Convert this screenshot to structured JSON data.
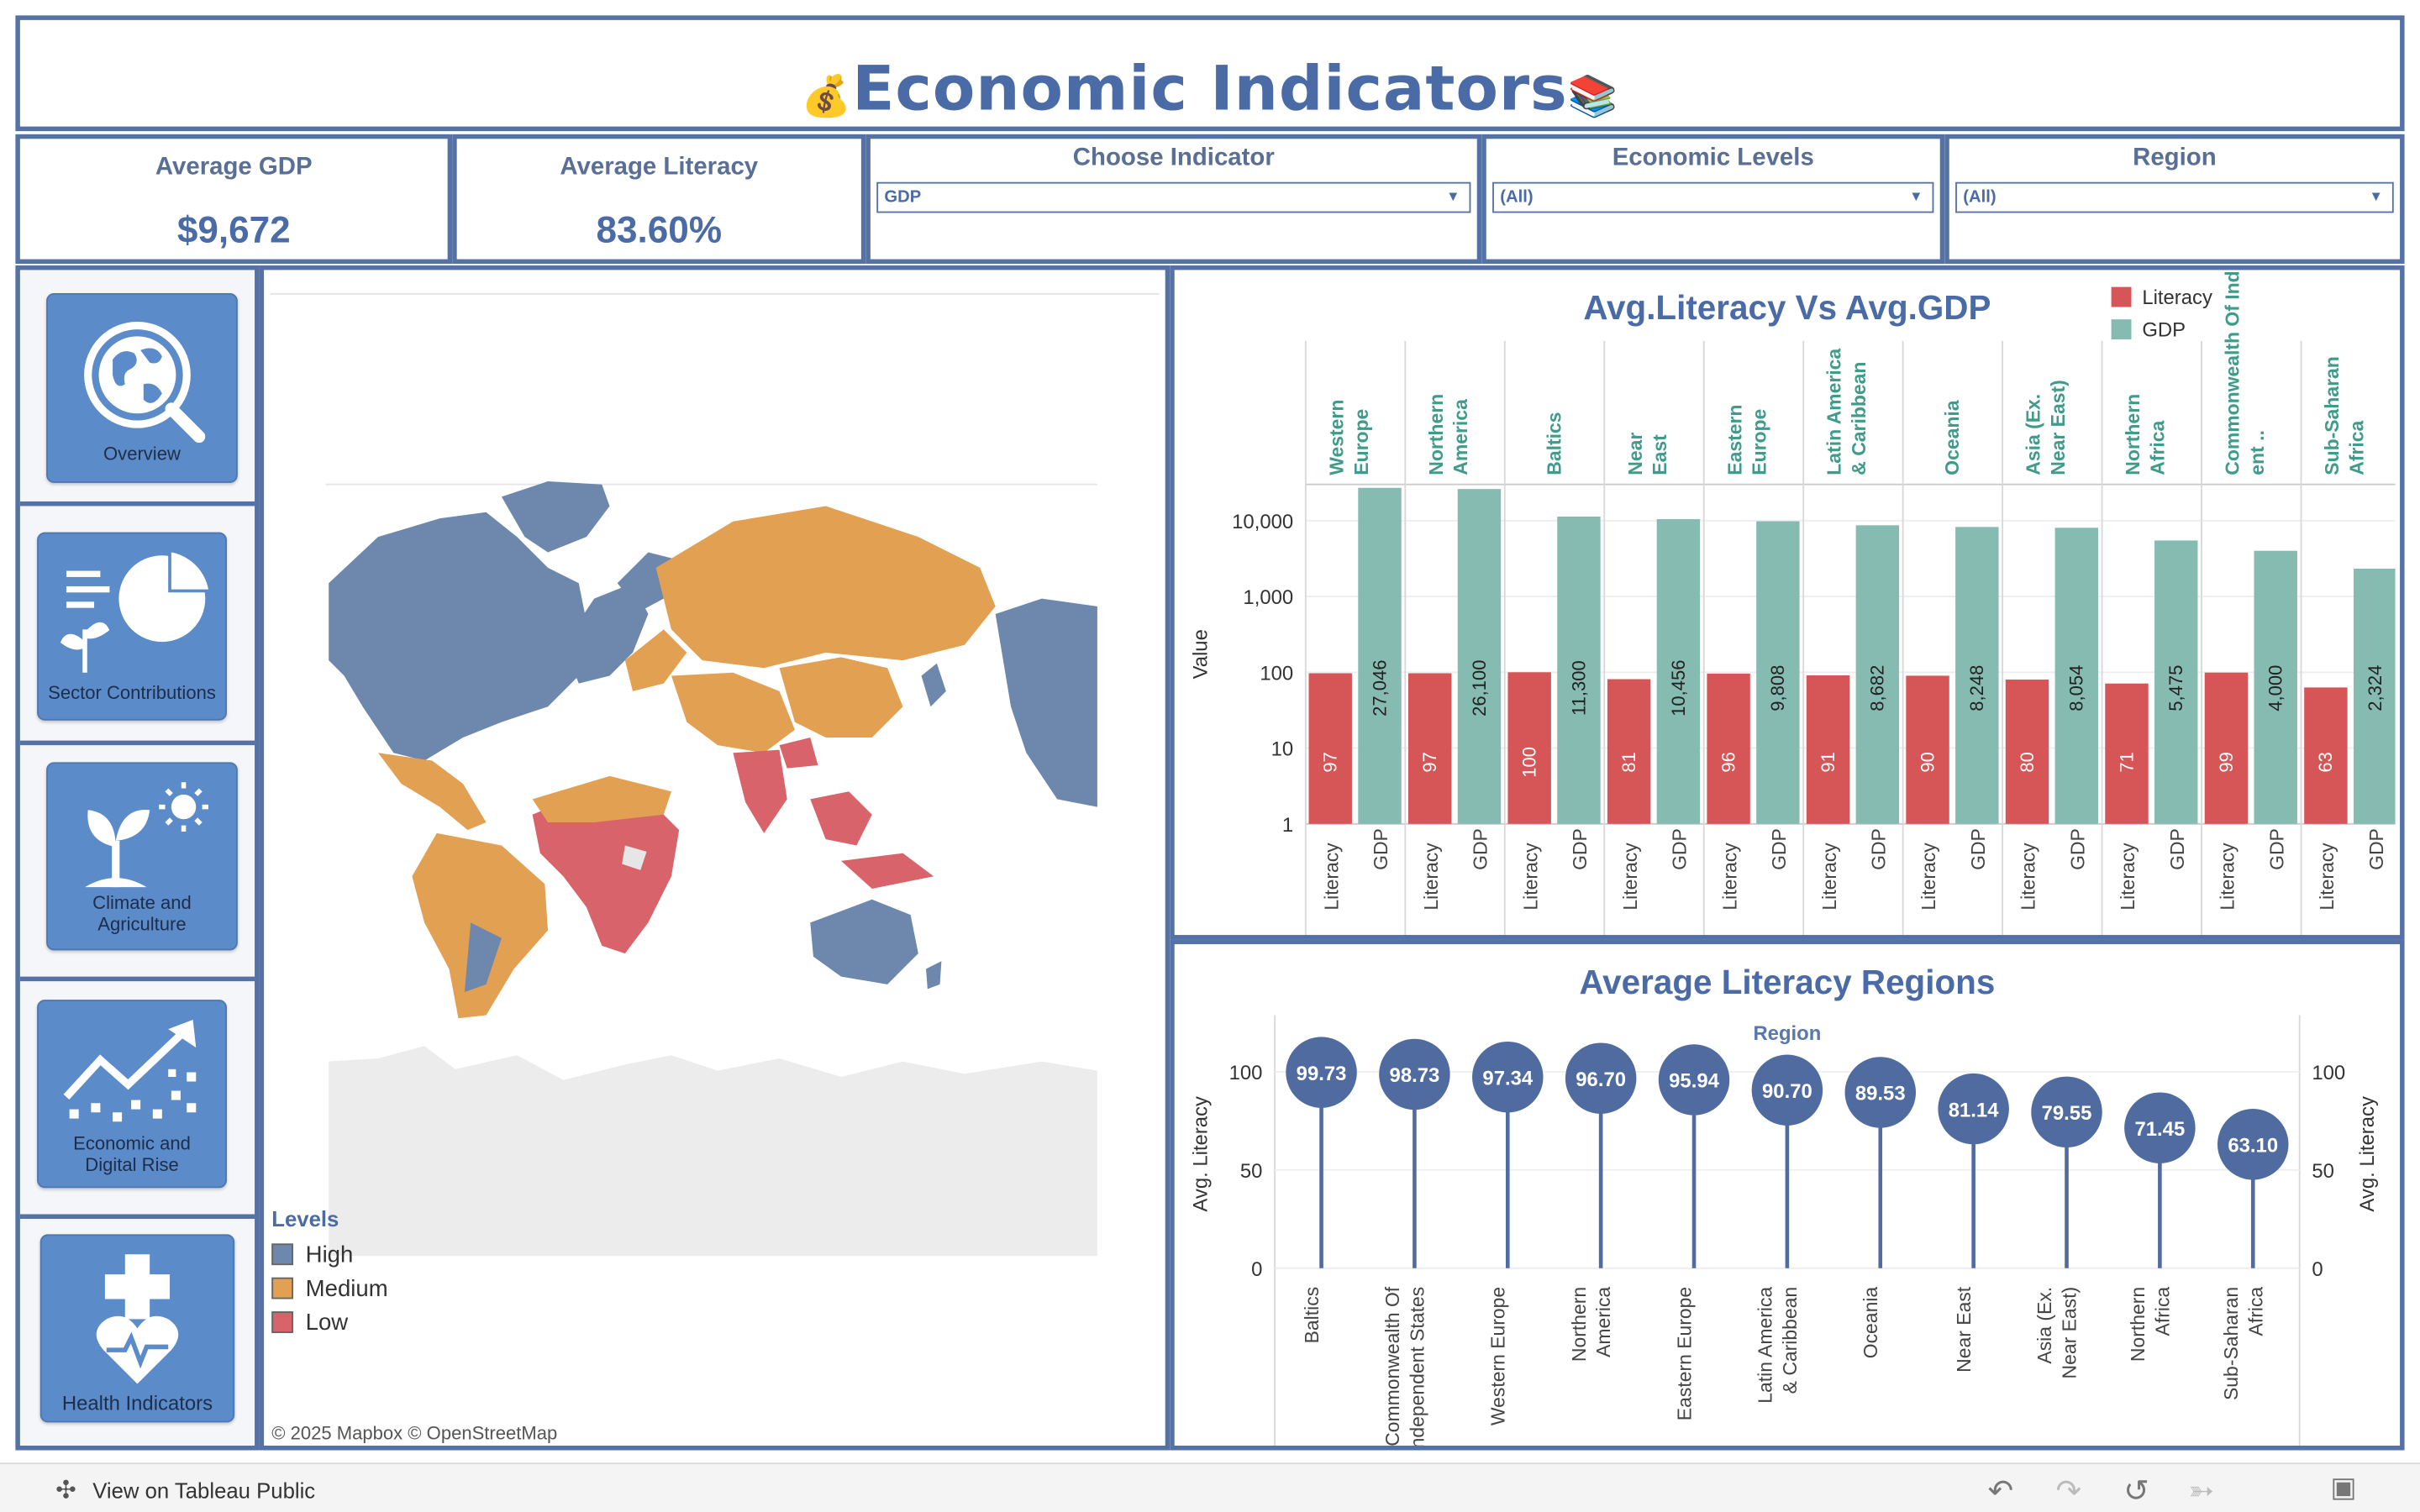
{
  "header": {
    "title": "Economic Indicators",
    "left_icon": "money-bag-icon",
    "right_icon": "books-icon"
  },
  "kpis": {
    "gdp_label": "Average GDP",
    "gdp_value": "$9,672",
    "literacy_label": "Average Literacy",
    "literacy_value": "83.60%"
  },
  "filters": {
    "indicator_label": "Choose Indicator",
    "indicator_value": "GDP",
    "levels_label": "Economic Levels",
    "levels_value": "(All)",
    "region_label": "Region",
    "region_value": "(All)"
  },
  "nav": {
    "overview": "Overview",
    "sector": "Sector Contributions",
    "climate_line1": "Climate and",
    "climate_line2": "Agriculture",
    "economic_line1": "Economic and",
    "economic_line2": "Digital Rise",
    "health": "Health Indicators"
  },
  "map": {
    "legend_title": "Levels",
    "legend": [
      {
        "label": "High",
        "color": "#6d87ad"
      },
      {
        "label": "Medium",
        "color": "#e2a052"
      },
      {
        "label": "Low",
        "color": "#d9636b"
      }
    ],
    "attribution": "© 2025 Mapbox  © OpenStreetMap"
  },
  "footer": {
    "link_text": "View on Tableau Public"
  },
  "colors": {
    "literacy": "#d65657",
    "gdp": "#86bbb1",
    "lollipop": "#4f6b9f",
    "frame": "#5572a6"
  },
  "chart_data": [
    {
      "type": "bar",
      "title": "Avg.Literacy Vs Avg.GDP",
      "ylabel": "Value",
      "yscale": "log",
      "ylim": [
        1,
        30000
      ],
      "yticks": [
        "1",
        "10",
        "100",
        "1,000",
        "10,000"
      ],
      "legend_position": "top-right",
      "categories": [
        "Western Europe",
        "Northern America",
        "Baltics",
        "Near East",
        "Eastern Europe",
        "Latin America & Caribbean",
        "Oceania",
        "Asia (Ex. Near East)",
        "Northern Africa",
        "Commonwealth Of Independ ent ..",
        "Sub-Saharan Africa"
      ],
      "measure_labels": [
        "Literacy",
        "GDP"
      ],
      "series": [
        {
          "name": "Literacy",
          "values": [
            97,
            97,
            100,
            81,
            96,
            91,
            90,
            80,
            71,
            99,
            63
          ],
          "labels": [
            "97",
            "97",
            "100",
            "81",
            "96",
            "91",
            "90",
            "80",
            "71",
            "99",
            "63"
          ]
        },
        {
          "name": "GDP",
          "values": [
            27046,
            26100,
            11300,
            10456,
            9808,
            8682,
            8248,
            8054,
            5475,
            4000,
            2324
          ],
          "labels": [
            "27,046",
            "26,100",
            "11,300",
            "10,456",
            "9,808",
            "8,682",
            "8,248",
            "8,054",
            "5,475",
            "4,000",
            "2,324"
          ]
        }
      ]
    },
    {
      "type": "lollipop",
      "title": "Average Literacy Regions",
      "column_header": "Region",
      "ylabel": "Avg. Literacy",
      "ylim": [
        0,
        110
      ],
      "yticks": [
        "0",
        "50",
        "100"
      ],
      "categories": [
        "Baltics",
        "Commonwealth Of Independent States",
        "Western Europe",
        "Northern America",
        "Eastern Europe",
        "Latin America & Caribbean",
        "Oceania",
        "Near East",
        "Asia (Ex. Near East)",
        "Northern Africa",
        "Sub-Saharan Africa"
      ],
      "values": [
        99.73,
        98.73,
        97.34,
        96.7,
        95.94,
        90.7,
        89.53,
        81.14,
        79.55,
        71.45,
        63.1
      ],
      "labels": [
        "99.73",
        "98.73",
        "97.34",
        "96.70",
        "95.94",
        "90.70",
        "89.53",
        "81.14",
        "79.55",
        "71.45",
        "63.10"
      ]
    }
  ]
}
